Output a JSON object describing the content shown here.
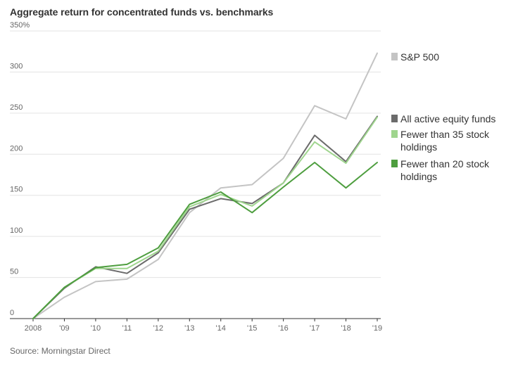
{
  "title": "Aggregate return for concentrated funds vs. benchmarks",
  "source": "Source: Morningstar Direct",
  "chart_data": {
    "type": "line",
    "title": "Aggregate return for concentrated funds vs. benchmarks",
    "xlabel": "",
    "ylabel": "",
    "x": [
      "2008",
      "'09",
      "'10",
      "'11",
      "'12",
      "'13",
      "'14",
      "'15",
      "'16",
      "'17",
      "'18",
      "'19"
    ],
    "ylim": [
      0,
      350
    ],
    "yticks": [
      {
        "value": 350,
        "label": "350%"
      },
      {
        "value": 300,
        "label": "300"
      },
      {
        "value": 250,
        "label": "250"
      },
      {
        "value": 200,
        "label": "200"
      },
      {
        "value": 150,
        "label": "150"
      },
      {
        "value": 100,
        "label": "100"
      },
      {
        "value": 50,
        "label": "50"
      },
      {
        "value": 0,
        "label": "0"
      }
    ],
    "grid": true,
    "legend_position": "right",
    "series": [
      {
        "name": "S&P 500",
        "label_lines": [
          "S&P 500"
        ],
        "color": "#c4c4c4",
        "values": [
          0,
          26,
          45,
          48,
          72,
          129,
          159,
          163,
          195,
          259,
          243,
          323
        ]
      },
      {
        "name": "All active equity funds",
        "label_lines": [
          "All active equity funds"
        ],
        "color": "#6b6b6b",
        "values": [
          0,
          37,
          63,
          55,
          80,
          133,
          146,
          140,
          165,
          223,
          191,
          246
        ]
      },
      {
        "name": "Fewer than 35 stock holdings",
        "label_lines": [
          "Fewer than 35 stock",
          "holdings"
        ],
        "color": "#9fd58e",
        "values": [
          0,
          38,
          61,
          61,
          82,
          136,
          151,
          137,
          165,
          215,
          189,
          245
        ]
      },
      {
        "name": "Fewer than 20 stock holdings",
        "label_lines": [
          "Fewer than 20 stock",
          "holdings"
        ],
        "color": "#4e9e3f",
        "values": [
          0,
          38,
          62,
          66,
          86,
          139,
          154,
          129,
          160,
          190,
          159,
          190
        ]
      }
    ]
  }
}
